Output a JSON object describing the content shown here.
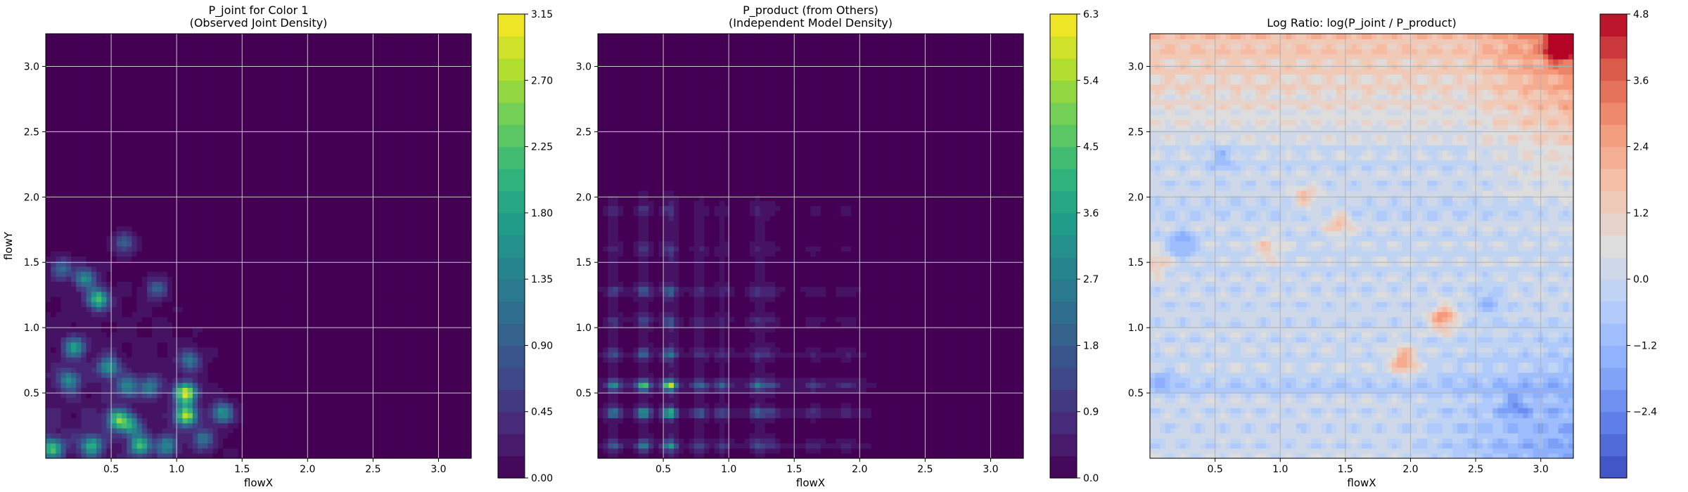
{
  "chart_data": [
    {
      "type": "heatmap",
      "title_lines": [
        "P_joint for Color 1",
        "(Observed Joint Density)"
      ],
      "xlabel": "flowX",
      "ylabel": "flowY",
      "xlim": [
        0,
        3.25
      ],
      "ylim": [
        0,
        3.25
      ],
      "xticks": [
        0.5,
        1.0,
        1.5,
        2.0,
        2.5,
        3.0
      ],
      "yticks": [
        0.5,
        1.0,
        1.5,
        2.0,
        2.5,
        3.0
      ],
      "xtick_labels": [
        "0.5",
        "1.0",
        "1.5",
        "2.0",
        "2.5",
        "3.0"
      ],
      "ytick_labels": [
        "0.5",
        "1.0",
        "1.5",
        "2.0",
        "2.5",
        "3.0"
      ],
      "grid": true,
      "colormap": "viridis",
      "colorbar": {
        "range": [
          0,
          3.15
        ],
        "ticks": [
          0,
          0.45,
          0.9,
          1.35,
          1.8,
          2.25,
          2.7,
          3.15
        ],
        "tick_labels": [
          "0.00",
          "0.45",
          "0.90",
          "1.35",
          "1.80",
          "2.25",
          "2.70",
          "3.15"
        ]
      },
      "hotspots": [
        {
          "x": 0.05,
          "y": 0.08,
          "value": 2.0
        },
        {
          "x": 0.22,
          "y": 0.85,
          "value": 1.6
        },
        {
          "x": 0.18,
          "y": 0.6,
          "value": 1.4
        },
        {
          "x": 0.4,
          "y": 1.22,
          "value": 2.2
        },
        {
          "x": 0.3,
          "y": 1.38,
          "value": 1.5
        },
        {
          "x": 0.55,
          "y": 0.3,
          "value": 2.2
        },
        {
          "x": 0.48,
          "y": 0.7,
          "value": 1.6
        },
        {
          "x": 0.62,
          "y": 0.55,
          "value": 1.4
        },
        {
          "x": 0.65,
          "y": 0.25,
          "value": 1.5
        },
        {
          "x": 0.72,
          "y": 0.1,
          "value": 2.0
        },
        {
          "x": 0.35,
          "y": 0.1,
          "value": 1.8
        },
        {
          "x": 0.92,
          "y": 0.1,
          "value": 1.4
        },
        {
          "x": 0.8,
          "y": 0.55,
          "value": 1.2
        },
        {
          "x": 1.07,
          "y": 0.5,
          "value": 3.0
        },
        {
          "x": 1.07,
          "y": 0.33,
          "value": 2.8
        },
        {
          "x": 1.1,
          "y": 0.75,
          "value": 1.2
        },
        {
          "x": 1.35,
          "y": 0.35,
          "value": 1.6
        },
        {
          "x": 1.2,
          "y": 0.15,
          "value": 1.2
        },
        {
          "x": 0.6,
          "y": 1.65,
          "value": 0.9
        },
        {
          "x": 0.85,
          "y": 1.3,
          "value": 0.9
        },
        {
          "x": 0.12,
          "y": 1.45,
          "value": 1.0
        }
      ]
    },
    {
      "type": "heatmap",
      "title_lines": [
        "P_product (from Others)",
        "(Independent Model Density)"
      ],
      "xlabel": "flowX",
      "ylabel": "",
      "xlim": [
        0,
        3.25
      ],
      "ylim": [
        0,
        3.25
      ],
      "xticks": [
        0.5,
        1.0,
        1.5,
        2.0,
        2.5,
        3.0
      ],
      "yticks": [
        0.5,
        1.0,
        1.5,
        2.0,
        2.5,
        3.0
      ],
      "xtick_labels": [
        "0.5",
        "1.0",
        "1.5",
        "2.0",
        "2.5",
        "3.0"
      ],
      "ytick_labels": [
        "0.5",
        "1.0",
        "1.5",
        "2.0",
        "2.5",
        "3.0"
      ],
      "grid": true,
      "colormap": "viridis",
      "colorbar": {
        "range": [
          0,
          6.3
        ],
        "ticks": [
          0,
          0.9,
          1.8,
          2.7,
          3.6,
          4.5,
          5.4,
          6.3
        ],
        "tick_labels": [
          "0.0",
          "0.9",
          "1.8",
          "2.7",
          "3.6",
          "4.5",
          "5.4",
          "6.3"
        ]
      },
      "x_bands": [
        {
          "x": 0.12,
          "value": 1.8
        },
        {
          "x": 0.35,
          "value": 2.6
        },
        {
          "x": 0.55,
          "value": 3.2
        },
        {
          "x": 0.78,
          "value": 1.2
        },
        {
          "x": 0.95,
          "value": 1.0
        },
        {
          "x": 1.22,
          "value": 1.4
        },
        {
          "x": 1.32,
          "value": 0.8
        },
        {
          "x": 1.65,
          "value": 0.5
        },
        {
          "x": 1.9,
          "value": 0.4
        }
      ],
      "y_bands": [
        {
          "y": 0.1,
          "value": 1.6
        },
        {
          "y": 0.35,
          "value": 2.2
        },
        {
          "y": 0.56,
          "value": 2.8
        },
        {
          "y": 0.8,
          "value": 1.2
        },
        {
          "y": 1.05,
          "value": 0.8
        },
        {
          "y": 1.28,
          "value": 1.0
        },
        {
          "y": 1.6,
          "value": 0.4
        },
        {
          "y": 1.9,
          "value": 0.4
        }
      ]
    },
    {
      "type": "heatmap",
      "title_lines": [
        "Log Ratio: log(P_joint / P_product)"
      ],
      "xlabel": "flowX",
      "ylabel": "",
      "xlim": [
        0,
        3.25
      ],
      "ylim": [
        0,
        3.25
      ],
      "xticks": [
        0.5,
        1.0,
        1.5,
        2.0,
        2.5,
        3.0
      ],
      "yticks": [
        0.5,
        1.0,
        1.5,
        2.0,
        2.5,
        3.0
      ],
      "xtick_labels": [
        "0.5",
        "1.0",
        "1.5",
        "2.0",
        "2.5",
        "3.0"
      ],
      "ytick_labels": [
        "0.5",
        "1.0",
        "1.5",
        "2.0",
        "2.5",
        "3.0"
      ],
      "grid": true,
      "colormap": "coolwarm",
      "colorbar": {
        "range": [
          -3.6,
          4.8
        ],
        "ticks": [
          -2.4,
          -1.2,
          0,
          1.2,
          2.4,
          3.6,
          4.8
        ],
        "tick_labels": [
          "−2.4",
          "−1.2",
          "0.0",
          "1.2",
          "2.4",
          "3.6",
          "4.8"
        ]
      },
      "features": [
        {
          "x": 3.15,
          "y": 3.15,
          "value": 4.5
        },
        {
          "x": 2.25,
          "y": 1.07,
          "value": 2.8
        },
        {
          "x": 1.95,
          "y": 0.75,
          "value": 2.6
        },
        {
          "x": 1.45,
          "y": 1.8,
          "value": 1.8
        },
        {
          "x": 1.2,
          "y": 2.0,
          "value": 1.6
        },
        {
          "x": 0.9,
          "y": 1.6,
          "value": 1.4
        },
        {
          "x": 0.05,
          "y": 1.5,
          "value": 1.4
        },
        {
          "x": 0.25,
          "y": 1.65,
          "value": -1.8
        },
        {
          "x": 0.55,
          "y": 2.3,
          "value": -1.2
        },
        {
          "x": 2.8,
          "y": 0.4,
          "value": -1.4
        },
        {
          "x": 2.6,
          "y": 1.2,
          "value": -1.2
        },
        {
          "x": 0.1,
          "y": 0.6,
          "value": -1.0
        }
      ],
      "row_trend": "positive toward flowY≈3.0–3.2, negative in rows near flowY≈0.55 and 1.9"
    }
  ]
}
